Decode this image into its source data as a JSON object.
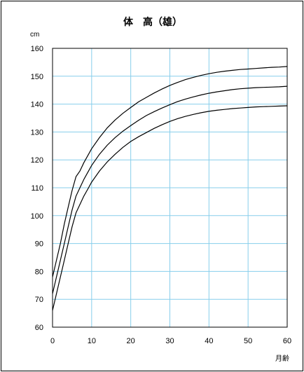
{
  "chart_data": {
    "type": "line",
    "title": "体　高（雄）",
    "ylabel": "cm",
    "xlabel": "月齢",
    "xlim": [
      0,
      60
    ],
    "ylim": [
      60,
      160
    ],
    "x_ticks": [
      0,
      10,
      20,
      30,
      40,
      50,
      60
    ],
    "y_ticks": [
      60,
      70,
      80,
      90,
      100,
      110,
      120,
      130,
      140,
      150,
      160
    ],
    "grid": true,
    "colors": {
      "grid": "#87ceeb",
      "line": "#000000",
      "border": "#000000"
    },
    "series": [
      {
        "x": [
          0,
          1,
          2,
          3,
          4,
          5,
          6,
          7,
          8,
          9,
          10,
          12,
          14,
          16,
          18,
          20,
          22,
          24,
          26,
          28,
          30,
          32,
          34,
          36,
          38,
          40,
          42,
          44,
          46,
          48,
          50,
          52,
          54,
          56,
          58,
          60
        ],
        "values": [
          78,
          84,
          90,
          97,
          103,
          109,
          114,
          116,
          119,
          121.5,
          124,
          128,
          131.5,
          134.3,
          136.7,
          138.8,
          140.8,
          142.4,
          144,
          145.4,
          146.7,
          147.8,
          148.8,
          149.6,
          150.3,
          150.9,
          151.4,
          151.8,
          152.1,
          152.4,
          152.6,
          152.8,
          153,
          153.2,
          153.3,
          153.5
        ]
      },
      {
        "x": [
          0,
          1,
          2,
          3,
          4,
          5,
          6,
          7,
          8,
          9,
          10,
          12,
          14,
          16,
          18,
          20,
          22,
          24,
          26,
          28,
          30,
          32,
          34,
          36,
          38,
          40,
          42,
          44,
          46,
          48,
          50,
          52,
          54,
          56,
          58,
          60
        ],
        "values": [
          72,
          78,
          84,
          90,
          96,
          102,
          107,
          110,
          113,
          115.5,
          118,
          122,
          125.3,
          128,
          130.3,
          132.3,
          134.2,
          135.9,
          137.3,
          138.6,
          139.8,
          140.9,
          141.8,
          142.6,
          143.3,
          143.9,
          144.4,
          144.8,
          145.2,
          145.5,
          145.7,
          145.9,
          146,
          146.1,
          146.2,
          146.4
        ]
      },
      {
        "x": [
          0,
          1,
          2,
          3,
          4,
          5,
          6,
          7,
          8,
          9,
          10,
          12,
          14,
          16,
          18,
          20,
          22,
          24,
          26,
          28,
          30,
          32,
          34,
          36,
          38,
          40,
          42,
          44,
          46,
          48,
          50,
          52,
          54,
          56,
          58,
          60
        ],
        "values": [
          66,
          72,
          78,
          84,
          90,
          96,
          101,
          104,
          107,
          109.5,
          112,
          116,
          119.3,
          122,
          124.5,
          126.6,
          128.3,
          129.8,
          131.3,
          132.6,
          133.8,
          134.8,
          135.6,
          136.3,
          136.9,
          137.4,
          137.8,
          138.1,
          138.4,
          138.6,
          138.8,
          139,
          139.1,
          139.2,
          139.3,
          139.4
        ]
      }
    ]
  }
}
